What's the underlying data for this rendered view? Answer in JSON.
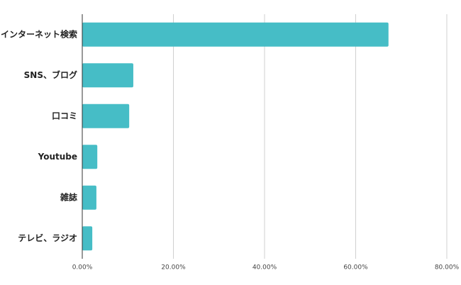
{
  "chart_data": {
    "type": "hbar",
    "categories": [
      "インターネット検索",
      "SNS、ブログ",
      "口コミ",
      "Youtube",
      "雑誌",
      "テレビ、ラジオ"
    ],
    "values": [
      67.2,
      11.2,
      10.3,
      3.3,
      3.1,
      2.2
    ],
    "color": "#46bdc6",
    "xlim": [
      0,
      80
    ],
    "xticks": [
      {
        "value": 0,
        "label": "0.00%"
      },
      {
        "value": 20,
        "label": "20.00%"
      },
      {
        "value": 40,
        "label": "40.00%"
      },
      {
        "value": 60,
        "label": "60.00%"
      },
      {
        "value": 80,
        "label": "80.00%"
      }
    ],
    "grid": true
  }
}
